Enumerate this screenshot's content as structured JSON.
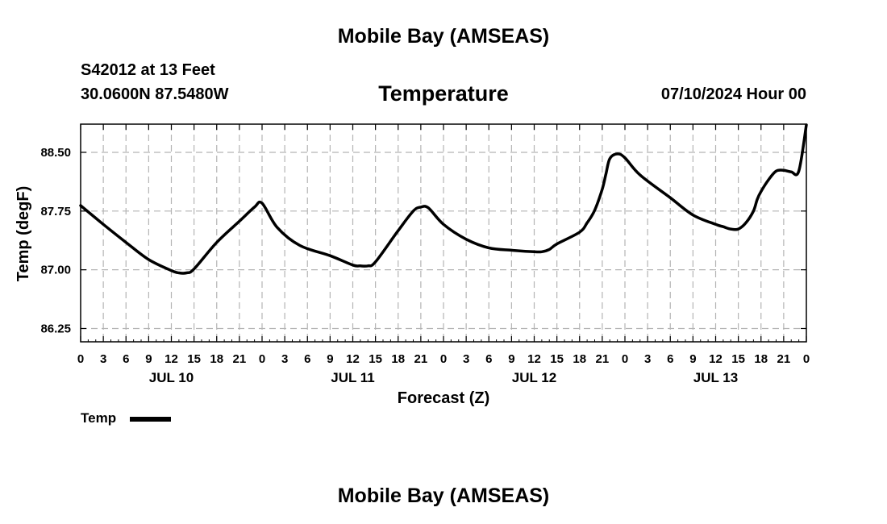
{
  "header": {
    "site_title": "Mobile Bay (AMSEAS)",
    "station": "S42012 at 13 Feet",
    "coords": "30.0600N  87.5480W",
    "variable": "Temperature",
    "run_time": "07/10/2024 Hour 00"
  },
  "footer": {
    "site_title": "Mobile Bay (AMSEAS)"
  },
  "legend": {
    "label": "Temp",
    "color": "#000000"
  },
  "chart_data": {
    "type": "line",
    "title": "Temperature",
    "xlabel": "Forecast (Z)",
    "ylabel": "Temp (degF)",
    "x_unit": "hours from 07/10/2024 00Z",
    "xlim": [
      0,
      96
    ],
    "ylim": [
      86.08,
      88.86
    ],
    "yticks": [
      86.25,
      87.0,
      87.75,
      88.5
    ],
    "ytick_labels": [
      "86.25",
      "87.00",
      "87.75",
      "88.50"
    ],
    "xticks": [
      0,
      3,
      6,
      9,
      12,
      15,
      18,
      21,
      24,
      27,
      30,
      33,
      36,
      39,
      42,
      45,
      48,
      51,
      54,
      57,
      60,
      63,
      66,
      69,
      72,
      75,
      78,
      81,
      84,
      87,
      90,
      93,
      96
    ],
    "xtick_labels": [
      "0",
      "3",
      "6",
      "9",
      "12",
      "15",
      "18",
      "21",
      "0",
      "3",
      "6",
      "9",
      "12",
      "15",
      "18",
      "21",
      "0",
      "3",
      "6",
      "9",
      "12",
      "15",
      "18",
      "21",
      "0",
      "3",
      "6",
      "9",
      "12",
      "15",
      "18",
      "21",
      "0"
    ],
    "day_labels": [
      {
        "x": 12,
        "label": "JUL 10"
      },
      {
        "x": 36,
        "label": "JUL 11"
      },
      {
        "x": 60,
        "label": "JUL 12"
      },
      {
        "x": 84,
        "label": "JUL 13"
      }
    ],
    "grid": true,
    "legend_position": "bottom-left",
    "series": [
      {
        "name": "Temp",
        "color": "#000000",
        "x": [
          0,
          3,
          6,
          9,
          12,
          13,
          14,
          15,
          18,
          21,
          23,
          24,
          26,
          29,
          33,
          36,
          37,
          38,
          39,
          42,
          44,
          45,
          46,
          48,
          51,
          54,
          57,
          60,
          61,
          62,
          63,
          66,
          67,
          68,
          69,
          69.5,
          70,
          71,
          72,
          74,
          78,
          81,
          84,
          85,
          86,
          87,
          88,
          89,
          89.5,
          90,
          91,
          92,
          93,
          94,
          95,
          96
        ],
        "values": [
          87.82,
          87.58,
          87.35,
          87.13,
          86.99,
          86.96,
          86.96,
          87.01,
          87.35,
          87.62,
          87.8,
          87.85,
          87.54,
          87.31,
          87.18,
          87.06,
          87.05,
          87.05,
          87.1,
          87.5,
          87.75,
          87.8,
          87.79,
          87.58,
          87.39,
          87.28,
          87.25,
          87.23,
          87.23,
          87.26,
          87.33,
          87.48,
          87.6,
          87.76,
          88.03,
          88.23,
          88.42,
          88.48,
          88.43,
          88.21,
          87.92,
          87.7,
          87.58,
          87.55,
          87.52,
          87.52,
          87.6,
          87.75,
          87.9,
          88.0,
          88.15,
          88.26,
          88.27,
          88.25,
          88.26,
          88.85
        ]
      }
    ]
  }
}
